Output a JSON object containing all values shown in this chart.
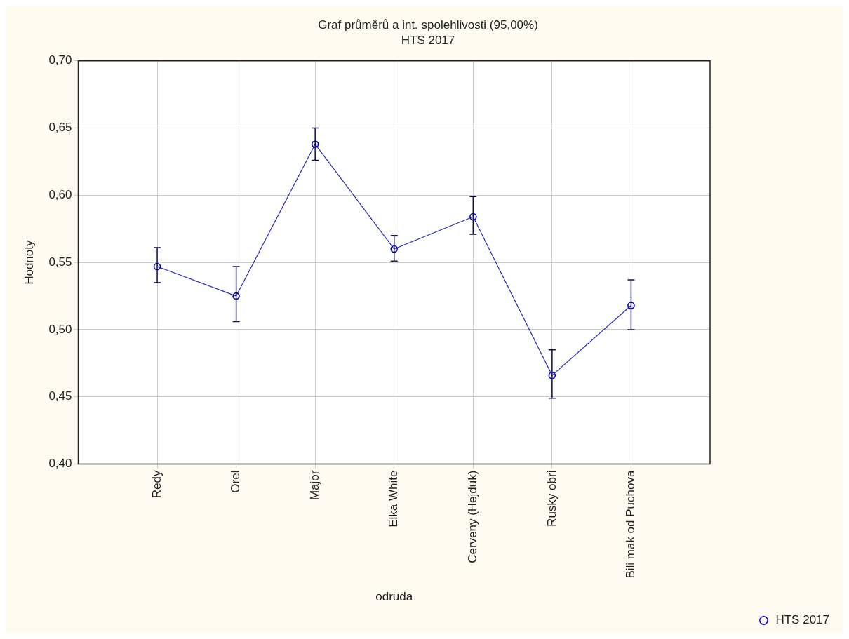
{
  "chart_data": {
    "type": "line",
    "title": "Graf průměrů a int. spolehlivosti (95,00%)",
    "subtitle": "HTS 2017",
    "xlabel": "odruda",
    "ylabel": "Hodnoty",
    "categories": [
      "Redy",
      "Orel",
      "Major",
      "Elka White",
      "Cerveny (Hejduk)",
      "Rusky obri",
      "Bili mak od Puchova"
    ],
    "series": [
      {
        "name": "HTS 2017",
        "color": "#2a2ac0",
        "values": [
          0.547,
          0.525,
          0.638,
          0.56,
          0.584,
          0.466,
          0.518
        ],
        "errors": [
          [
            0.535,
            0.561
          ],
          [
            0.506,
            0.547
          ],
          [
            0.626,
            0.65
          ],
          [
            0.551,
            0.57
          ],
          [
            0.571,
            0.599
          ],
          [
            0.449,
            0.485
          ],
          [
            0.5,
            0.537
          ]
        ]
      }
    ],
    "ylim": [
      0.4,
      0.7
    ],
    "yticks": [
      {
        "value": 0.4,
        "label": "0,40"
      },
      {
        "value": 0.45,
        "label": "0,45"
      },
      {
        "value": 0.5,
        "label": "0,50"
      },
      {
        "value": 0.55,
        "label": "0,55"
      },
      {
        "value": 0.6,
        "label": "0,60"
      },
      {
        "value": 0.65,
        "label": "0,65"
      },
      {
        "value": 0.7,
        "label": "0,70"
      }
    ],
    "grid": true,
    "legend": "bottom right",
    "marker": "circle",
    "line_style": "solid"
  }
}
